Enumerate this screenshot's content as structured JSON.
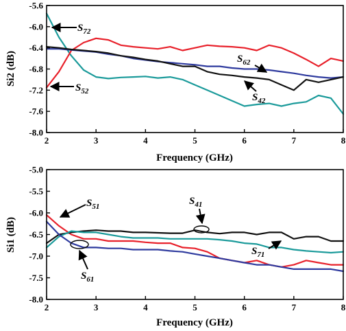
{
  "chart_data": [
    {
      "type": "line",
      "ylabel": "Si2 (dB)",
      "xlabel": "Frequency (GHz)",
      "xlim": [
        2,
        8
      ],
      "ylim": [
        -8.0,
        -5.6
      ],
      "xticks": [
        "2",
        "3",
        "4",
        "5",
        "6",
        "7",
        "8"
      ],
      "yticks": [
        "-8.0",
        "-7.6",
        "-7.2",
        "-6.8",
        "-6.4",
        "-6.0",
        "-5.6"
      ],
      "grid": false,
      "x": [
        2.0,
        2.25,
        2.5,
        2.75,
        3.0,
        3.25,
        3.5,
        3.75,
        4.0,
        4.25,
        4.5,
        4.75,
        5.0,
        5.25,
        5.5,
        5.75,
        6.0,
        6.25,
        6.5,
        6.75,
        7.0,
        7.25,
        7.5,
        7.75,
        8.0
      ],
      "series": [
        {
          "name": "S72",
          "color": "#1a9a9a",
          "values": [
            -5.75,
            -6.2,
            -6.55,
            -6.82,
            -6.95,
            -6.98,
            -6.96,
            -6.95,
            -6.94,
            -6.97,
            -6.95,
            -7.0,
            -7.1,
            -7.2,
            -7.3,
            -7.4,
            -7.5,
            -7.47,
            -7.45,
            -7.5,
            -7.45,
            -7.42,
            -7.3,
            -7.35,
            -7.65
          ]
        },
        {
          "name": "S52",
          "color": "#e8202a",
          "values": [
            -7.15,
            -6.85,
            -6.45,
            -6.3,
            -6.22,
            -6.25,
            -6.35,
            -6.38,
            -6.4,
            -6.42,
            -6.38,
            -6.45,
            -6.4,
            -6.35,
            -6.37,
            -6.38,
            -6.4,
            -6.45,
            -6.35,
            -6.4,
            -6.5,
            -6.62,
            -6.75,
            -6.6,
            -6.65
          ]
        },
        {
          "name": "S62",
          "color": "#2e3a9e",
          "values": [
            -6.42,
            -6.42,
            -6.44,
            -6.46,
            -6.48,
            -6.52,
            -6.55,
            -6.6,
            -6.63,
            -6.66,
            -6.68,
            -6.7,
            -6.72,
            -6.75,
            -6.75,
            -6.78,
            -6.8,
            -6.8,
            -6.82,
            -6.85,
            -6.88,
            -6.92,
            -6.95,
            -6.97,
            -6.95
          ]
        },
        {
          "name": "S42",
          "color": "#111111",
          "values": [
            -6.38,
            -6.4,
            -6.43,
            -6.45,
            -6.47,
            -6.5,
            -6.55,
            -6.58,
            -6.62,
            -6.65,
            -6.7,
            -6.75,
            -6.75,
            -6.85,
            -6.9,
            -6.92,
            -6.95,
            -6.97,
            -7.0,
            -7.1,
            -7.2,
            -7.0,
            -7.05,
            -7.0,
            -6.95
          ]
        }
      ],
      "annotations": [
        {
          "text": "S",
          "sub": "72"
        },
        {
          "text": "S",
          "sub": "52"
        },
        {
          "text": "S",
          "sub": "62"
        },
        {
          "text": "S",
          "sub": "42"
        }
      ]
    },
    {
      "type": "line",
      "ylabel": "Si1 (dB)",
      "xlabel": "Frequency (GHz)",
      "xlim": [
        2,
        8
      ],
      "ylim": [
        -8.0,
        -5.0
      ],
      "xticks": [
        "2",
        "3",
        "4",
        "5",
        "6",
        "7",
        "8"
      ],
      "yticks": [
        "-8.0",
        "-7.5",
        "-7.0",
        "-6.5",
        "-6.0",
        "-5.5",
        "-5.0"
      ],
      "grid": false,
      "x": [
        2.0,
        2.25,
        2.5,
        2.75,
        3.0,
        3.25,
        3.5,
        3.75,
        4.0,
        4.25,
        4.5,
        4.75,
        5.0,
        5.25,
        5.5,
        5.75,
        6.0,
        6.25,
        6.5,
        6.75,
        7.0,
        7.25,
        7.5,
        7.75,
        8.0
      ],
      "series": [
        {
          "name": "S51",
          "color": "#e8202a",
          "values": [
            -6.05,
            -6.3,
            -6.5,
            -6.6,
            -6.6,
            -6.65,
            -6.65,
            -6.65,
            -6.68,
            -6.7,
            -6.7,
            -6.8,
            -6.82,
            -6.9,
            -7.05,
            -7.1,
            -7.15,
            -7.1,
            -7.2,
            -7.25,
            -7.2,
            -7.1,
            -7.15,
            -7.2,
            -7.2
          ]
        },
        {
          "name": "S41",
          "color": "#111111",
          "values": [
            -6.7,
            -6.5,
            -6.45,
            -6.42,
            -6.4,
            -6.42,
            -6.42,
            -6.45,
            -6.45,
            -6.46,
            -6.47,
            -6.47,
            -6.4,
            -6.45,
            -6.48,
            -6.45,
            -6.45,
            -6.5,
            -6.45,
            -6.45,
            -6.6,
            -6.55,
            -6.55,
            -6.65,
            -6.65
          ]
        },
        {
          "name": "S71",
          "color": "#1a9a9a",
          "values": [
            -6.8,
            -6.55,
            -6.42,
            -6.45,
            -6.45,
            -6.5,
            -6.55,
            -6.58,
            -6.58,
            -6.58,
            -6.6,
            -6.6,
            -6.6,
            -6.6,
            -6.62,
            -6.65,
            -6.7,
            -6.72,
            -6.8,
            -6.8,
            -6.85,
            -6.88,
            -6.9,
            -6.92,
            -6.9
          ]
        },
        {
          "name": "S61",
          "color": "#2e3a9e",
          "values": [
            -6.2,
            -6.5,
            -6.7,
            -6.8,
            -6.8,
            -6.82,
            -6.82,
            -6.85,
            -6.85,
            -6.85,
            -6.88,
            -6.9,
            -6.95,
            -7.0,
            -7.05,
            -7.1,
            -7.15,
            -7.2,
            -7.2,
            -7.25,
            -7.3,
            -7.3,
            -7.3,
            -7.3,
            -7.35
          ]
        }
      ],
      "annotations": [
        {
          "text": "S",
          "sub": "51"
        },
        {
          "text": "S",
          "sub": "41"
        },
        {
          "text": "S",
          "sub": "71"
        },
        {
          "text": "S",
          "sub": "61"
        }
      ]
    }
  ]
}
